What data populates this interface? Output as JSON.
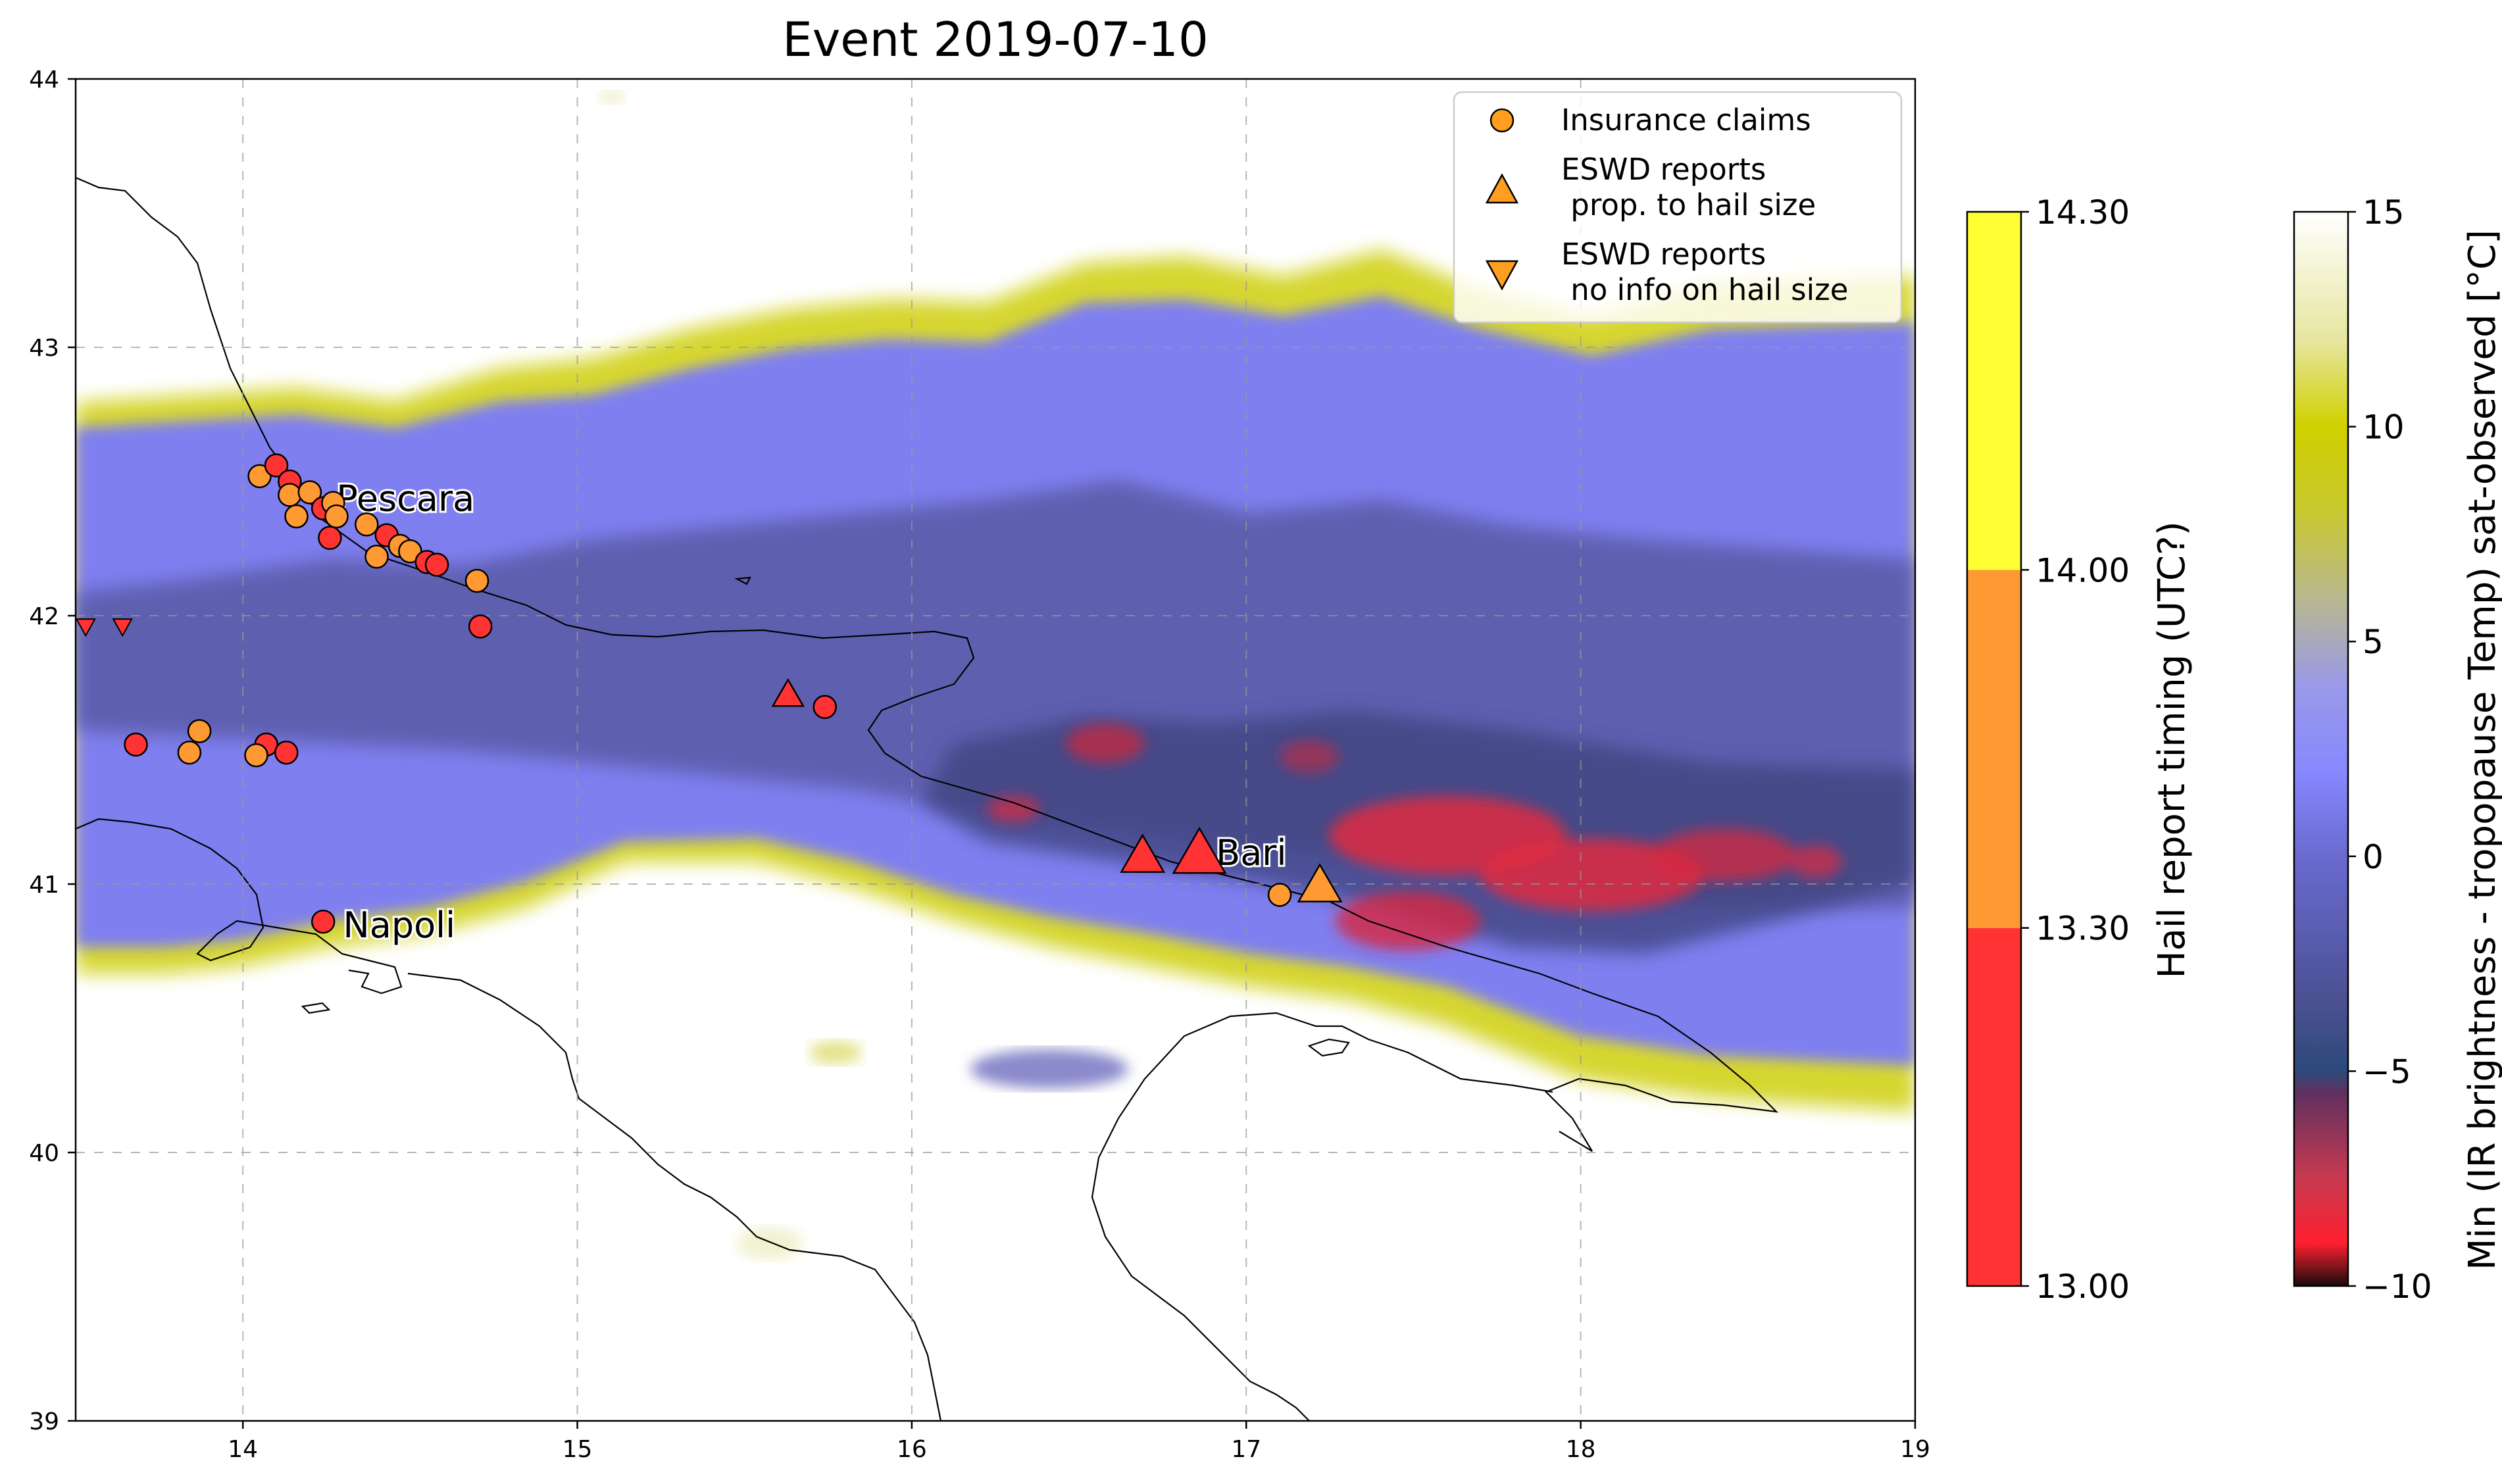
{
  "title": "Event 2019-07-10",
  "map": {
    "xlim": [
      13.5,
      19
    ],
    "ylim": [
      39,
      44
    ],
    "x_ticks": [
      14,
      15,
      16,
      17,
      18,
      19
    ],
    "y_ticks": [
      39,
      40,
      41,
      42,
      43,
      44
    ],
    "grid": "dashed-gray",
    "land_color": "#ffffff",
    "coast_color": "#000000"
  },
  "cities": [
    {
      "name": "Pescara",
      "lon": 14.24,
      "lat": 42.44
    },
    {
      "name": "Bari",
      "lon": 16.87,
      "lat": 41.12
    },
    {
      "name": "Napoli",
      "lon": 14.26,
      "lat": 40.85
    }
  ],
  "legend": {
    "position": "top-right",
    "entries": [
      {
        "label_lines": [
          "Insurance claims"
        ],
        "marker": "circle",
        "color": "#ff9e1f"
      },
      {
        "label_lines": [
          "ESWD reports",
          " prop. to hail size"
        ],
        "marker": "triangle-up",
        "color": "#ff9e1f"
      },
      {
        "label_lines": [
          "ESWD reports",
          " no info on hail size"
        ],
        "marker": "triangle-down",
        "color": "#ff9e1f"
      }
    ]
  },
  "colorbar_timing": {
    "label": "Hail report timing (UTC?)",
    "tick_labels": [
      "13.00",
      "13.30",
      "14.00",
      "14.30"
    ],
    "bins": [
      {
        "from": 13.0,
        "to": 13.3,
        "color": "#ff3333"
      },
      {
        "from": 13.3,
        "to": 14.0,
        "color": "#ff9a33"
      },
      {
        "from": 14.0,
        "to": 14.3,
        "color": "#ffff33"
      }
    ]
  },
  "colorbar_temperature": {
    "label": "Min (IR brightness - tropopause Temp) sat-observed [°C]",
    "range": [
      -10,
      15
    ],
    "ticks": [
      -10,
      -5,
      0,
      5,
      10,
      15
    ],
    "tick_labels": [
      "−10",
      "−5",
      "0",
      "5",
      "10",
      "15"
    ],
    "stops": [
      {
        "v": -10,
        "color": "#1a0a0a"
      },
      {
        "v": -9,
        "color": "#ff2030"
      },
      {
        "v": -7.5,
        "color": "#c83a50"
      },
      {
        "v": -5.5,
        "color": "#603060"
      },
      {
        "v": -5,
        "color": "#2c4a7a"
      },
      {
        "v": -3.5,
        "color": "#4a5090"
      },
      {
        "v": 0,
        "color": "#6a6ad0"
      },
      {
        "v": 2,
        "color": "#8888ff"
      },
      {
        "v": 4,
        "color": "#9a9ae8"
      },
      {
        "v": 6,
        "color": "#b8b890"
      },
      {
        "v": 8,
        "color": "#c8c830"
      },
      {
        "v": 10,
        "color": "#d0d000"
      },
      {
        "v": 12,
        "color": "#e6e6a0"
      },
      {
        "v": 15,
        "color": "#ffffff"
      }
    ]
  },
  "insurance_claims": [
    {
      "lon": 14.05,
      "lat": 42.52,
      "time": 13.4
    },
    {
      "lon": 14.1,
      "lat": 42.56,
      "time": 13.2
    },
    {
      "lon": 14.14,
      "lat": 42.5,
      "time": 13.2
    },
    {
      "lon": 14.14,
      "lat": 42.45,
      "time": 13.4
    },
    {
      "lon": 14.2,
      "lat": 42.46,
      "time": 13.5
    },
    {
      "lon": 14.16,
      "lat": 42.37,
      "time": 13.4
    },
    {
      "lon": 14.24,
      "lat": 42.4,
      "time": 13.2
    },
    {
      "lon": 14.27,
      "lat": 42.42,
      "time": 13.5
    },
    {
      "lon": 14.28,
      "lat": 42.37,
      "time": 13.4
    },
    {
      "lon": 14.26,
      "lat": 42.29,
      "time": 13.2
    },
    {
      "lon": 14.37,
      "lat": 42.34,
      "time": 13.5
    },
    {
      "lon": 14.43,
      "lat": 42.3,
      "time": 13.2
    },
    {
      "lon": 14.47,
      "lat": 42.26,
      "time": 13.5
    },
    {
      "lon": 14.5,
      "lat": 42.24,
      "time": 13.5
    },
    {
      "lon": 14.4,
      "lat": 42.22,
      "time": 13.4
    },
    {
      "lon": 14.55,
      "lat": 42.2,
      "time": 13.2
    },
    {
      "lon": 14.58,
      "lat": 42.19,
      "time": 13.2
    },
    {
      "lon": 14.7,
      "lat": 42.13,
      "time": 13.4
    },
    {
      "lon": 14.71,
      "lat": 41.96,
      "time": 13.2
    },
    {
      "lon": 13.87,
      "lat": 41.57,
      "time": 13.5
    },
    {
      "lon": 13.68,
      "lat": 41.52,
      "time": 13.2
    },
    {
      "lon": 13.84,
      "lat": 41.49,
      "time": 13.4
    },
    {
      "lon": 14.07,
      "lat": 41.52,
      "time": 13.2
    },
    {
      "lon": 14.04,
      "lat": 41.48,
      "time": 13.4
    },
    {
      "lon": 14.13,
      "lat": 41.49,
      "time": 13.2
    },
    {
      "lon": 15.74,
      "lat": 41.66,
      "time": 13.2
    },
    {
      "lon": 14.24,
      "lat": 40.86,
      "time": 13.2
    },
    {
      "lon": 17.1,
      "lat": 40.96,
      "time": 13.4
    }
  ],
  "eswd_sized": [
    {
      "lon": 15.63,
      "lat": 41.71,
      "time": 13.2,
      "size": 1.0
    },
    {
      "lon": 16.69,
      "lat": 41.11,
      "time": 13.2,
      "size": 1.4
    },
    {
      "lon": 16.86,
      "lat": 41.12,
      "time": 13.2,
      "size": 1.7
    },
    {
      "lon": 17.22,
      "lat": 41.0,
      "time": 13.5,
      "size": 1.4
    }
  ],
  "eswd_unsized": [
    {
      "lon": 13.53,
      "lat": 41.96,
      "time": 13.2
    },
    {
      "lon": 13.64,
      "lat": 41.96,
      "time": 13.2
    }
  ]
}
